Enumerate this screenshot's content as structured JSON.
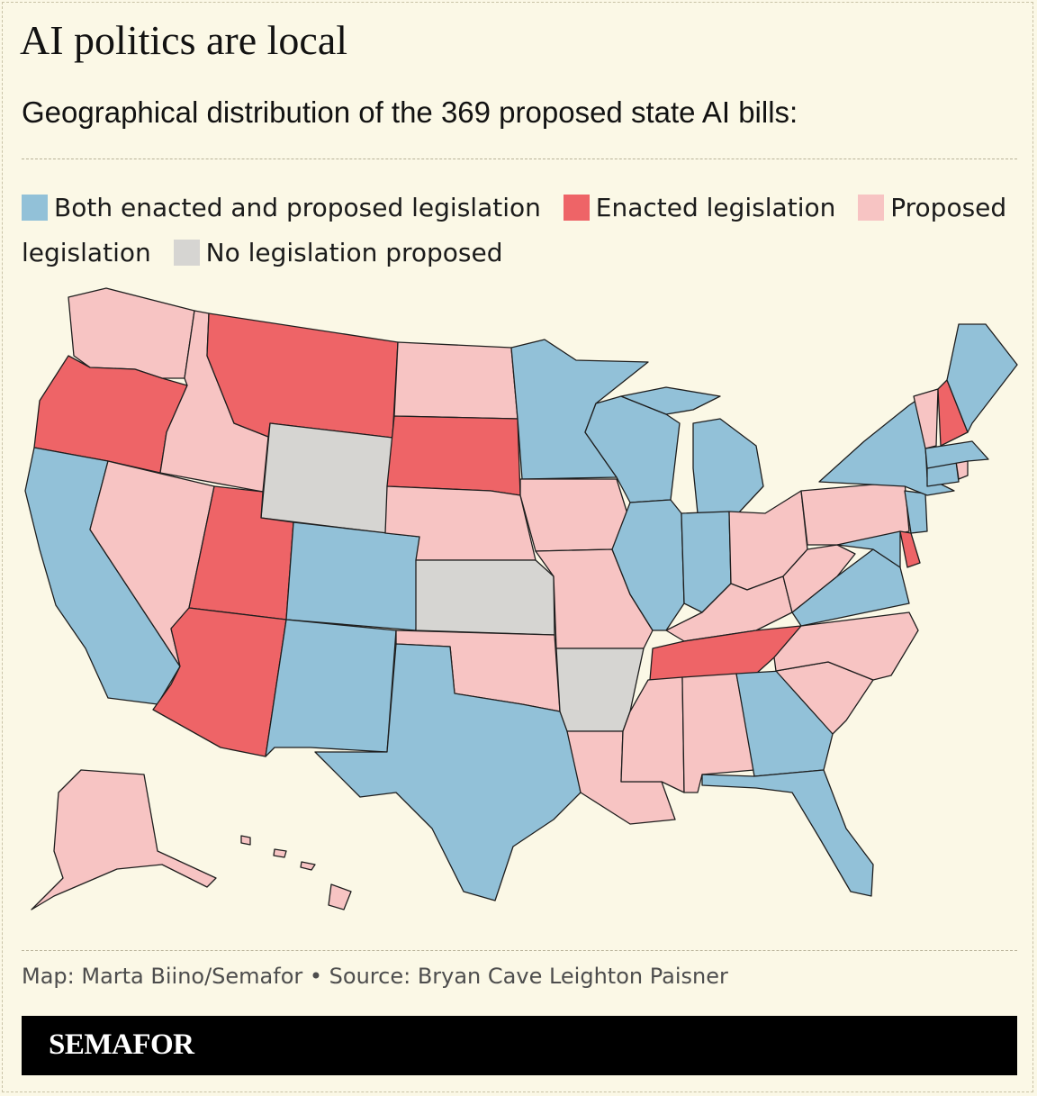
{
  "title": "AI politics are local",
  "subtitle": "Geographical distribution of the 369 proposed state AI bills:",
  "legend": [
    {
      "label": "Both enacted and proposed legislation",
      "color": "#92c1d8",
      "key": "both"
    },
    {
      "label": "Enacted legislation",
      "color": "#ee6467",
      "key": "enacted"
    },
    {
      "label": "Proposed legislation",
      "color": "#f7c4c3",
      "key": "proposed"
    },
    {
      "label": "No legislation proposed",
      "color": "#d6d5d2",
      "key": "none"
    }
  ],
  "states": {
    "WA": "proposed",
    "OR": "enacted",
    "CA": "both",
    "ID": "proposed",
    "NV": "proposed",
    "MT": "enacted",
    "WY": "none",
    "UT": "enacted",
    "AZ": "enacted",
    "CO": "both",
    "NM": "both",
    "ND": "proposed",
    "SD": "enacted",
    "NE": "proposed",
    "KS": "none",
    "OK": "proposed",
    "TX": "both",
    "MN": "both",
    "IA": "proposed",
    "MO": "proposed",
    "AR": "none",
    "LA": "proposed",
    "WI": "both",
    "IL": "both",
    "MI": "both",
    "IN": "both",
    "OH": "proposed",
    "KY": "proposed",
    "TN": "enacted",
    "MS": "proposed",
    "AL": "proposed",
    "GA": "both",
    "FL": "both",
    "SC": "proposed",
    "NC": "proposed",
    "VA": "both",
    "WV": "proposed",
    "PA": "proposed",
    "NY": "both",
    "VT": "proposed",
    "NH": "enacted",
    "ME": "both",
    "MA": "both",
    "RI": "proposed",
    "CT": "both",
    "NJ": "both",
    "DE": "enacted",
    "MD": "both",
    "AK": "proposed",
    "HI": "proposed"
  },
  "credit": "Map: Marta Biino/Semafor • Source: Bryan Cave Leighton Paisner",
  "brand": "SEMAFOR"
}
